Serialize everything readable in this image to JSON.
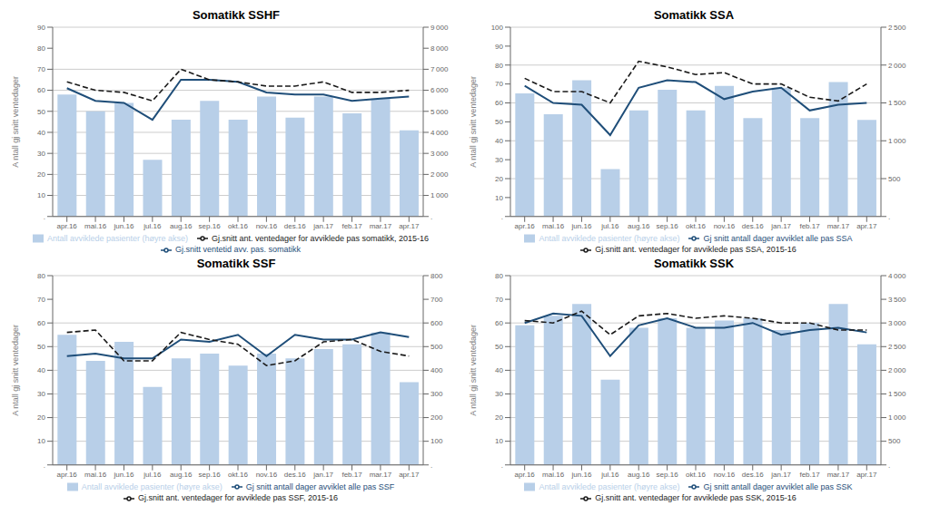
{
  "chart_data": [
    {
      "type": "bar",
      "title": "Somatikk SSHF",
      "y_label": "A ntall gj snitt ventedager",
      "categories": [
        "apr.16",
        "mai.16",
        "jun.16",
        "jul.16",
        "aug.16",
        "sep.16",
        "okt.16",
        "nov.16",
        "des.16",
        "jan.17",
        "feb.17",
        "mar.17",
        "apr.17"
      ],
      "series": [
        {
          "name": "Antall avviklede pasienter (høyre akse)",
          "type": "bar",
          "axis": "y2",
          "color": "#b8cfe8",
          "values": [
            5800,
            5000,
            5400,
            2700,
            4600,
            5500,
            4600,
            5700,
            4700,
            5700,
            4900,
            5600,
            4100
          ]
        },
        {
          "name": "Gj.snitt ventetid avv. pas. somatikk",
          "type": "line",
          "line_style": "solid",
          "color": "#1f4e79",
          "values": [
            61,
            55,
            54,
            46,
            65,
            65,
            64,
            59,
            58,
            58,
            55,
            56,
            57
          ]
        },
        {
          "name": "Gj.snitt ant. ventedager for avviklede pas somatikk, 2015-16",
          "type": "line",
          "line_style": "dashed",
          "color": "#1a1a1a",
          "values": [
            64,
            60,
            59,
            55,
            70,
            65,
            64,
            62,
            62,
            64,
            59,
            59,
            60
          ]
        }
      ],
      "ylim": [
        0,
        90
      ],
      "yticks": [
        {
          "value": 0,
          "label": "."
        },
        10,
        20,
        30,
        40,
        50,
        60,
        70,
        80,
        90
      ],
      "y2lim": [
        0,
        9000
      ],
      "y2ticks": [
        {
          "value": 0,
          "label": "."
        },
        {
          "value": 1000,
          "label": "1 000"
        },
        {
          "value": 2000,
          "label": "2 000"
        },
        {
          "value": 3000,
          "label": "3 000"
        },
        {
          "value": 4000,
          "label": "4 000"
        },
        {
          "value": 5000,
          "label": "5 000"
        },
        {
          "value": 6000,
          "label": "6 000"
        },
        {
          "value": 7000,
          "label": "7 000"
        },
        {
          "value": 8000,
          "label": "8 000"
        },
        {
          "value": 9000,
          "label": "9 000"
        }
      ],
      "grid": true,
      "legend": "bottom"
    },
    {
      "type": "bar",
      "title": "Somatikk SSA",
      "y_label": "A ntall gj snitt ventedager",
      "categories": [
        "apr.16",
        "mai.16",
        "jun.16",
        "jul.16",
        "aug.16",
        "sep.16",
        "okt.16",
        "nov.16",
        "des.16",
        "jan.17",
        "feb.17",
        "mar.17",
        "apr.17"
      ],
      "series": [
        {
          "name": "Antall avviklede pasienter (høyre akse)",
          "type": "bar",
          "axis": "y2",
          "color": "#b8cfe8",
          "values": [
            1625,
            1350,
            1800,
            625,
            1400,
            1675,
            1400,
            1725,
            1300,
            1700,
            1300,
            1775,
            1275
          ]
        },
        {
          "name": "Gj snitt antall dager avviklet alle pas SSA",
          "type": "line",
          "line_style": "solid",
          "color": "#1f4e79",
          "values": [
            69,
            60,
            59,
            43,
            68,
            72,
            71,
            62,
            66,
            68,
            56,
            59,
            60
          ]
        },
        {
          "name": "Gj.snitt ant. ventedager for avviklede pas SSA, 2015-16",
          "type": "line",
          "line_style": "dashed",
          "color": "#1a1a1a",
          "values": [
            73,
            66,
            66,
            60,
            82,
            79,
            75,
            76,
            70,
            70,
            63,
            61,
            70
          ]
        }
      ],
      "ylim": [
        0,
        100
      ],
      "yticks": [
        {
          "value": 0,
          "label": "."
        },
        10,
        20,
        30,
        40,
        50,
        60,
        70,
        80,
        90,
        100
      ],
      "y2lim": [
        0,
        2500
      ],
      "y2ticks": [
        {
          "value": 0,
          "label": "."
        },
        500,
        {
          "value": 1000,
          "label": "1 000"
        },
        {
          "value": 1500,
          "label": "1 500"
        },
        {
          "value": 2000,
          "label": "2 000"
        },
        {
          "value": 2500,
          "label": "2 500"
        }
      ],
      "grid": true,
      "legend": "bottom"
    },
    {
      "type": "bar",
      "title": "Somatikk SSF",
      "y_label": "A ntall gj snitt ventedager",
      "categories": [
        "apr.16",
        "mai.16",
        "jun.16",
        "jul.16",
        "aug.16",
        "sep.16",
        "okt.16",
        "nov.16",
        "des.16",
        "jan.17",
        "feb.17",
        "mar.17",
        "apr.17"
      ],
      "series": [
        {
          "name": "Antall avviklede pasienter (høyre akse)",
          "type": "bar",
          "axis": "y2",
          "color": "#b8cfe8",
          "values": [
            550,
            440,
            520,
            330,
            450,
            470,
            420,
            470,
            450,
            490,
            510,
            560,
            350
          ]
        },
        {
          "name": "Gj snitt antall dager avviklet alle pas SSF",
          "type": "line",
          "line_style": "solid",
          "color": "#1f4e79",
          "values": [
            46,
            47,
            45,
            45,
            53,
            52,
            55,
            46,
            55,
            53,
            53,
            56,
            54
          ]
        },
        {
          "name": "Gj.snitt ant. ventedager for avviklede pas SSF, 2015-16",
          "type": "line",
          "line_style": "dashed",
          "color": "#1a1a1a",
          "values": [
            56,
            57,
            44,
            44,
            56,
            53,
            51,
            42,
            44,
            52,
            53,
            48,
            46
          ]
        }
      ],
      "ylim": [
        0,
        80
      ],
      "yticks": [
        {
          "value": 0,
          "label": "."
        },
        10,
        20,
        30,
        40,
        50,
        60,
        70,
        80
      ],
      "y2lim": [
        0,
        800
      ],
      "y2ticks": [
        {
          "value": 0,
          "label": "."
        },
        100,
        200,
        300,
        400,
        500,
        600,
        700,
        800
      ],
      "grid": true,
      "legend": "bottom"
    },
    {
      "type": "bar",
      "title": "Somatikk SSK",
      "y_label": "A ntall gj snitt ventedager",
      "categories": [
        "apr.16",
        "mai.16",
        "jun.16",
        "jul.16",
        "aug.16",
        "sep.16",
        "okt.16",
        "nov.16",
        "des.16",
        "jan.17",
        "feb.17",
        "mar.17",
        "apr.17"
      ],
      "series": [
        {
          "name": "Antall avviklede pasienter (høyre akse)",
          "type": "bar",
          "axis": "y2",
          "color": "#b8cfe8",
          "values": [
            2950,
            3150,
            3400,
            1800,
            2900,
            3100,
            2900,
            3050,
            3100,
            2850,
            3000,
            3400,
            2550
          ]
        },
        {
          "name": "Gj snitt antall dager avviklet alle pas SSK",
          "type": "line",
          "line_style": "solid",
          "color": "#1f4e79",
          "values": [
            60,
            64,
            63,
            46,
            59,
            62,
            58,
            58,
            60,
            55,
            57,
            58,
            56
          ]
        },
        {
          "name": "Gj.snitt ant. ventedager for avviklede pas SSK, 2015-16",
          "type": "line",
          "line_style": "dashed",
          "color": "#1a1a1a",
          "values": [
            61,
            60,
            65,
            55,
            63,
            64,
            62,
            63,
            62,
            60,
            60,
            57,
            57
          ]
        }
      ],
      "ylim": [
        0,
        80
      ],
      "yticks": [
        {
          "value": 0,
          "label": "."
        },
        10,
        20,
        30,
        40,
        50,
        60,
        70,
        80
      ],
      "y2lim": [
        0,
        4000
      ],
      "y2ticks": [
        {
          "value": 0,
          "label": "."
        },
        500,
        {
          "value": 1000,
          "label": "1 000"
        },
        {
          "value": 1500,
          "label": "1 500"
        },
        {
          "value": 2000,
          "label": "2 000"
        },
        {
          "value": 2500,
          "label": "2 500"
        },
        {
          "value": 3000,
          "label": "3 000"
        },
        {
          "value": 3500,
          "label": "3 500"
        },
        {
          "value": 4000,
          "label": "4 000"
        }
      ],
      "grid": true,
      "legend": "bottom"
    }
  ]
}
